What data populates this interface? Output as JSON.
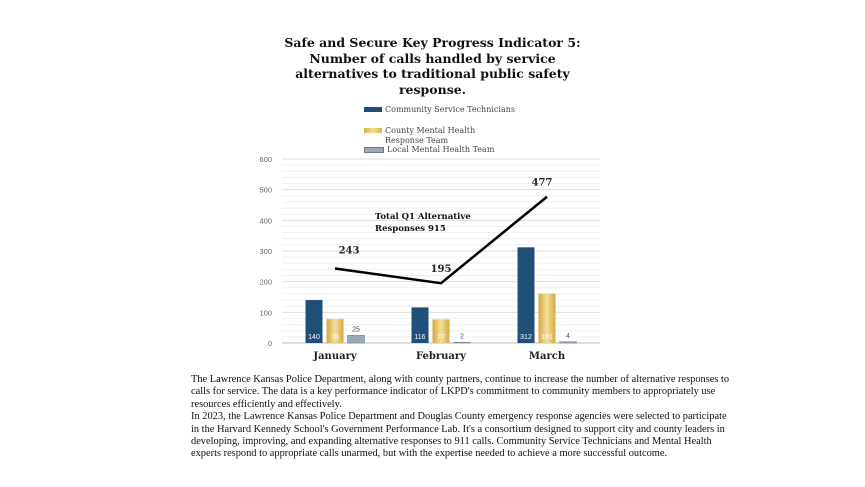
{
  "chart_data": {
    "type": "bar",
    "title": "Safe and Secure Key Progress Indicator 5: Number of calls handled by service alternatives to traditional public safety response.",
    "categories": [
      "January",
      "February",
      "March"
    ],
    "series": [
      {
        "name": "Community Service Technicians",
        "color": "#1f4e79",
        "values": [
          140,
          116,
          312
        ]
      },
      {
        "name": "County Mental Health Response Team",
        "color": "#e3c46a",
        "values": [
          78,
          77,
          161
        ]
      },
      {
        "name": "Local Mental Health Team",
        "color": "#9aa9b8",
        "values": [
          25,
          2,
          4
        ]
      }
    ],
    "total_line": {
      "name": "Total",
      "values": [
        243,
        195,
        477
      ]
    },
    "annotation": "Total Q1 Alternative Responses 915",
    "yticks": [
      0,
      100,
      200,
      300,
      400,
      500,
      600
    ],
    "ylim": [
      0,
      600
    ],
    "grid": true,
    "legend": "top"
  },
  "description": [
    "The Lawrence Kansas Police Department, along with county partners, continue to increase the number of alternative responses to calls for service. The data is a key performance indicator of LKPD's commitment to community members to appropriately use resources efficiently and effectively.",
    " In 2023, the Lawrence Kansas Police Department and Douglas County emergency response agencies were selected to participate in the Harvard Kennedy School's Government Performance Lab. It's a consortium designed to support city and county leaders in developing, improving, and expanding alternative responses to 911 calls.  Community Service Technicians and Mental Health experts respond to appropriate calls unarmed, but with the expertise needed to achieve a more successful outcome."
  ]
}
